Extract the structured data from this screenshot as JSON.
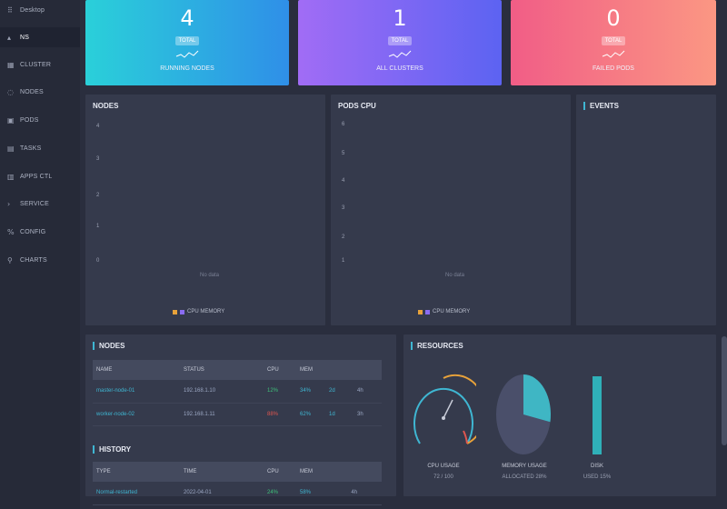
{
  "sidebar": {
    "items": [
      {
        "label": "Desktop",
        "icon": "grid-icon",
        "glyph": "⠿"
      },
      {
        "label": "NS",
        "icon": "caret-icon",
        "glyph": "▴"
      },
      {
        "label": "CLUSTER",
        "icon": "server-icon",
        "glyph": "▦"
      },
      {
        "label": "NODES",
        "icon": "node-icon",
        "glyph": "◌"
      },
      {
        "label": "PODS",
        "icon": "pod-icon",
        "glyph": "▣"
      },
      {
        "label": "TASKS",
        "icon": "task-icon",
        "glyph": "▤"
      },
      {
        "label": "APPS CTL",
        "icon": "apps-icon",
        "glyph": "▥"
      },
      {
        "label": "SERVICE",
        "icon": "service-icon",
        "glyph": "›"
      },
      {
        "label": "CONFIG",
        "icon": "config-icon",
        "glyph": "%"
      },
      {
        "label": "CHARTS",
        "icon": "chart-icon",
        "glyph": "⚲"
      }
    ]
  },
  "stats": [
    {
      "num": "4",
      "badge": "TOTAL",
      "caption": "RUNNING NODES",
      "from": "#2ad0d9",
      "to": "#2f8fe8"
    },
    {
      "num": "1",
      "badge": "TOTAL",
      "caption": "ALL CLUSTERS",
      "from": "#a16cf5",
      "to": "#5c63f2"
    },
    {
      "num": "0",
      "badge": "TOTAL",
      "caption": "FAILED PODS",
      "from": "#f15d86",
      "to": "#fb9783"
    }
  ],
  "panels": {
    "left_chart": {
      "title": "NODES",
      "ticks": [
        "4",
        "3",
        "2",
        "1",
        "0"
      ],
      "nodata": "No data",
      "legend": "CPU  MEMORY"
    },
    "mid_chart": {
      "title": "PODS CPU",
      "ticks": [
        "6",
        "5",
        "4",
        "3",
        "2",
        "1"
      ],
      "nodata": "No data",
      "legend": "CPU  MEMORY"
    },
    "right_panel": {
      "title": "EVENTS"
    }
  },
  "nodes_table": {
    "title": "NODES",
    "headers": [
      "NAME",
      "STATUS",
      "CPU",
      "MEM",
      ""
    ],
    "rows": [
      [
        "master-node-01",
        "192.168.1.10",
        "12%",
        "34%",
        "2d",
        "4h"
      ],
      [
        "worker-node-02",
        "192.168.1.11",
        "88%",
        "62%",
        "1d",
        "3h"
      ]
    ]
  },
  "events_table": {
    "title": "HISTORY",
    "headers": [
      "TYPE",
      "TIME",
      "CPU",
      "MEM"
    ],
    "rows": [
      [
        "Normal-restarted",
        "2022-04-01",
        "24%",
        "58%",
        "4h"
      ]
    ]
  },
  "resources": {
    "title": "RESOURCES",
    "gauge": {
      "label": "CPU USAGE",
      "value": "72 / 100"
    },
    "pie": {
      "label": "MEMORY USAGE",
      "value": "ALLOCATED 28%",
      "fraction": 0.28
    },
    "bar": {
      "label": "DISK",
      "value": "USED 15%",
      "fraction": 0.15
    }
  }
}
